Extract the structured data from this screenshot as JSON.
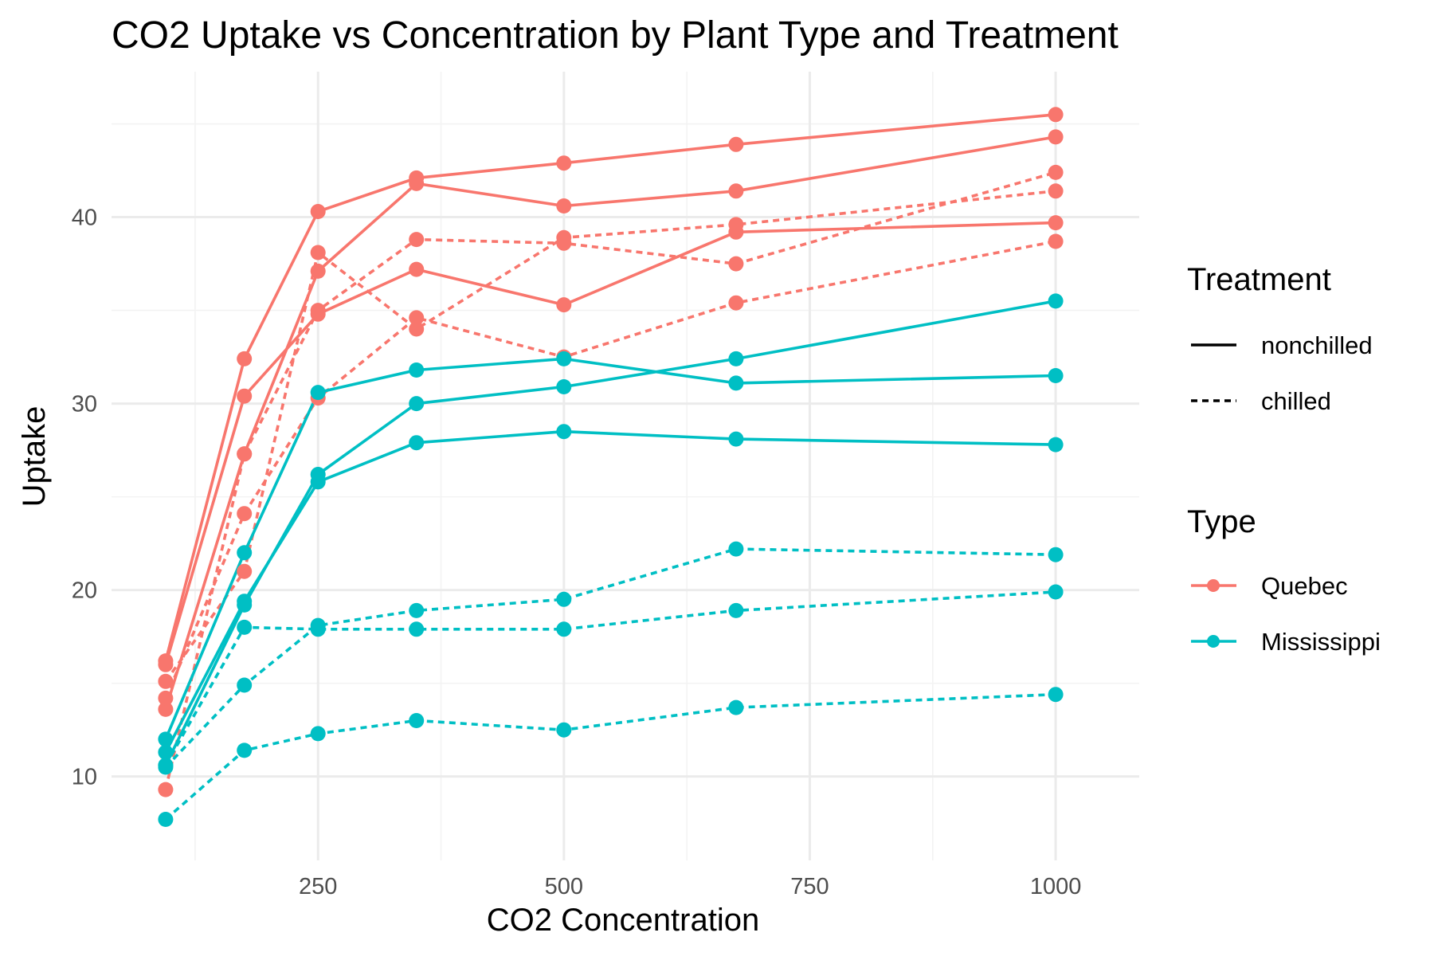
{
  "chart_data": {
    "type": "line",
    "title": "CO2 Uptake vs Concentration by Plant Type and Treatment",
    "xlabel": "CO2 Concentration",
    "ylabel": "Uptake",
    "xlim": [
      40,
      1085
    ],
    "ylim": [
      5.5,
      47.8
    ],
    "x_ticks": [
      250,
      500,
      750,
      1000
    ],
    "x_tick_labels": [
      "250",
      "500",
      "750",
      "1000"
    ],
    "x_minor_ticks": [
      125,
      375,
      625,
      875
    ],
    "y_ticks": [
      10,
      20,
      30,
      40
    ],
    "y_tick_labels": [
      "10",
      "20",
      "30",
      "40"
    ],
    "y_minor_ticks": [
      15,
      25,
      35,
      45
    ],
    "grid": true,
    "x": [
      95,
      175,
      250,
      350,
      500,
      675,
      1000
    ],
    "legend_position": "right",
    "legend": {
      "treatment": {
        "title": "Treatment",
        "items": [
          {
            "label": "nonchilled",
            "dash": "solid"
          },
          {
            "label": "chilled",
            "dash": "dashed"
          }
        ]
      },
      "type": {
        "title": "Type",
        "items": [
          {
            "label": "Quebec",
            "color": "#F8766D"
          },
          {
            "label": "Mississippi",
            "color": "#00BFC4"
          }
        ]
      }
    },
    "colors": {
      "Quebec": "#F8766D",
      "Mississippi": "#00BFC4"
    },
    "series": [
      {
        "type": "Quebec",
        "treatment": "nonchilled",
        "values": [
          16.0,
          30.4,
          34.8,
          37.2,
          35.3,
          39.2,
          39.7
        ]
      },
      {
        "type": "Quebec",
        "treatment": "nonchilled",
        "values": [
          13.6,
          27.3,
          37.1,
          41.8,
          40.6,
          41.4,
          44.3
        ]
      },
      {
        "type": "Quebec",
        "treatment": "nonchilled",
        "values": [
          16.2,
          32.4,
          40.3,
          42.1,
          42.9,
          43.9,
          45.5
        ]
      },
      {
        "type": "Quebec",
        "treatment": "chilled",
        "values": [
          14.2,
          24.1,
          30.3,
          34.6,
          32.5,
          35.4,
          38.7
        ]
      },
      {
        "type": "Quebec",
        "treatment": "chilled",
        "values": [
          9.3,
          27.3,
          35.0,
          38.8,
          38.6,
          37.5,
          42.4
        ]
      },
      {
        "type": "Quebec",
        "treatment": "chilled",
        "values": [
          15.1,
          21.0,
          38.1,
          34.0,
          38.9,
          39.6,
          41.4
        ]
      },
      {
        "type": "Mississippi",
        "treatment": "nonchilled",
        "values": [
          10.6,
          19.2,
          26.2,
          30.0,
          30.9,
          32.4,
          35.5
        ]
      },
      {
        "type": "Mississippi",
        "treatment": "nonchilled",
        "values": [
          12.0,
          22.0,
          30.6,
          31.8,
          32.4,
          31.1,
          31.5
        ]
      },
      {
        "type": "Mississippi",
        "treatment": "nonchilled",
        "values": [
          11.3,
          19.4,
          25.8,
          27.9,
          28.5,
          28.1,
          27.8
        ]
      },
      {
        "type": "Mississippi",
        "treatment": "chilled",
        "values": [
          10.5,
          14.9,
          18.1,
          18.9,
          19.5,
          22.2,
          21.9
        ]
      },
      {
        "type": "Mississippi",
        "treatment": "chilled",
        "values": [
          7.7,
          11.4,
          12.3,
          13.0,
          12.5,
          13.7,
          14.4
        ]
      },
      {
        "type": "Mississippi",
        "treatment": "chilled",
        "values": [
          10.6,
          18.0,
          17.9,
          17.9,
          17.9,
          18.9,
          19.9
        ]
      }
    ]
  }
}
